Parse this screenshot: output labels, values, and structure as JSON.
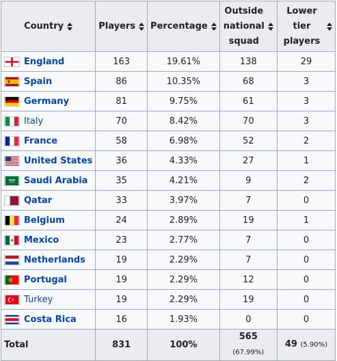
{
  "table": {
    "headers": {
      "country": "Country",
      "players": "Players",
      "percentage": "Percentage",
      "outside": [
        "Outside",
        "national",
        "squad"
      ],
      "lower": [
        "Lower tier",
        "players"
      ]
    },
    "rows": [
      {
        "country": "England",
        "bold": true,
        "players": "163",
        "percentage": "19.61%",
        "outside": "138",
        "lower": "29",
        "flag": "england"
      },
      {
        "country": "Spain",
        "bold": true,
        "players": "86",
        "percentage": "10.35%",
        "outside": "68",
        "lower": "3",
        "flag": "spain"
      },
      {
        "country": "Germany",
        "bold": true,
        "players": "81",
        "percentage": "9.75%",
        "outside": "61",
        "lower": "3",
        "flag": "germany"
      },
      {
        "country": "Italy",
        "bold": false,
        "players": "70",
        "percentage": "8.42%",
        "outside": "70",
        "lower": "3",
        "flag": "italy"
      },
      {
        "country": "France",
        "bold": true,
        "players": "58",
        "percentage": "6.98%",
        "outside": "52",
        "lower": "2",
        "flag": "france"
      },
      {
        "country": "United States",
        "bold": true,
        "players": "36",
        "percentage": "4.33%",
        "outside": "27",
        "lower": "1",
        "flag": "usa"
      },
      {
        "country": "Saudi Arabia",
        "bold": true,
        "players": "35",
        "percentage": "4.21%",
        "outside": "9",
        "lower": "2",
        "flag": "saudi"
      },
      {
        "country": "Qatar",
        "bold": true,
        "players": "33",
        "percentage": "3.97%",
        "outside": "7",
        "lower": "0",
        "flag": "qatar"
      },
      {
        "country": "Belgium",
        "bold": true,
        "players": "24",
        "percentage": "2.89%",
        "outside": "19",
        "lower": "1",
        "flag": "belgium"
      },
      {
        "country": "Mexico",
        "bold": true,
        "players": "23",
        "percentage": "2.77%",
        "outside": "7",
        "lower": "0",
        "flag": "mexico"
      },
      {
        "country": "Netherlands",
        "bold": true,
        "players": "19",
        "percentage": "2.29%",
        "outside": "7",
        "lower": "0",
        "flag": "netherlands"
      },
      {
        "country": "Portugal",
        "bold": true,
        "players": "19",
        "percentage": "2.29%",
        "outside": "12",
        "lower": "0",
        "flag": "portugal"
      },
      {
        "country": "Turkey",
        "bold": false,
        "players": "19",
        "percentage": "2.29%",
        "outside": "19",
        "lower": "0",
        "flag": "turkey"
      },
      {
        "country": "Costa Rica",
        "bold": true,
        "players": "16",
        "percentage": "1.93%",
        "outside": "0",
        "lower": "0",
        "flag": "costarica"
      }
    ],
    "total": {
      "label": "Total",
      "players": "831",
      "percentage": "100%",
      "outside": "565",
      "outside_pct": "(67.99%)",
      "lower": "49",
      "lower_pct": "(5.90%)"
    }
  },
  "colors": {
    "link": "#0645ad",
    "header_bg": "#eaecf0",
    "cell_bg": "#f8f9fa",
    "border": "#a2a9b1"
  }
}
